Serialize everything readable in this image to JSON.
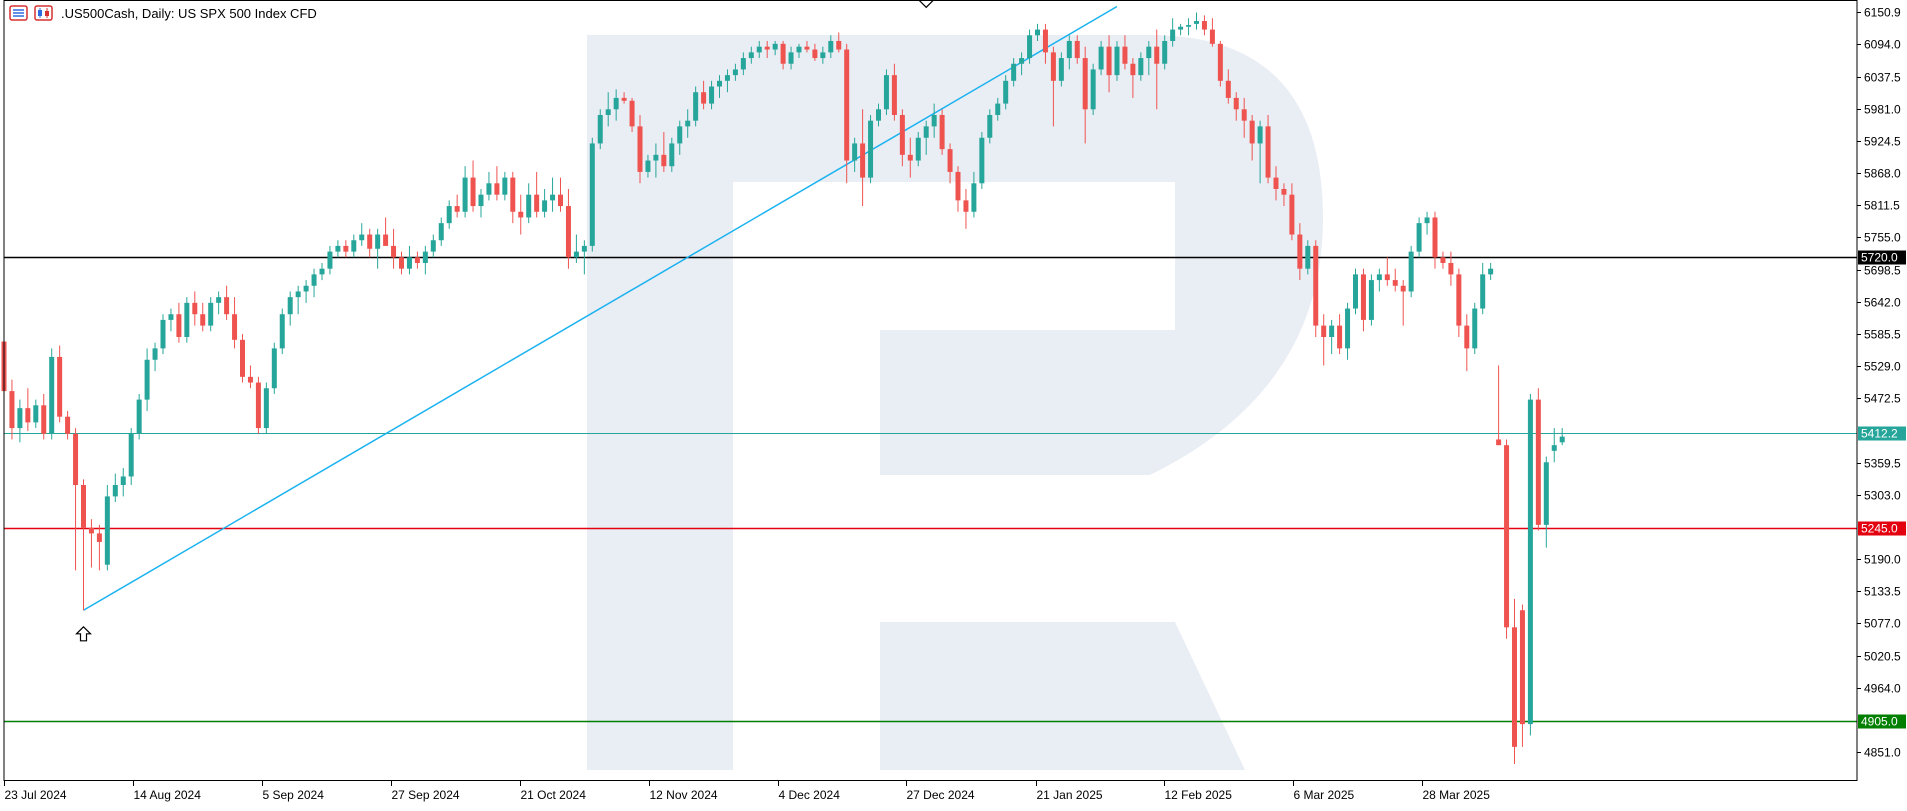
{
  "header": {
    "symbol": ".US500Cash",
    "timeframe": "Daily",
    "description": "US SPX 500 Index CFD",
    "text": ".US500Cash, Daily:  US SPX 500 Index CFD",
    "icons": [
      "list-icon",
      "candles-icon"
    ]
  },
  "chart_data": {
    "type": "candlestick",
    "title": ".US500Cash, Daily:  US SPX 500 Index CFD",
    "xlabel": "",
    "ylabel": "",
    "ylim": [
      4810,
      6160
    ],
    "grid": false,
    "legend": "none",
    "x_axis": {
      "ticks": [
        "23 Jul 2024",
        "14 Aug 2024",
        "5 Sep 2024",
        "27 Sep 2024",
        "21 Oct 2024",
        "12 Nov 2024",
        "4 Dec 2024",
        "27 Dec 2024",
        "21 Jan 2025",
        "12 Feb 2025",
        "6 Mar 2025",
        "28 Mar 2025"
      ]
    },
    "y_axis": {
      "ticks": [
        6150.9,
        6094.0,
        6037.5,
        5981.0,
        5924.5,
        5868.0,
        5811.5,
        5755.0,
        5698.5,
        5642.0,
        5585.5,
        5529.0,
        5472.5,
        5359.5,
        5303.0,
        5190.0,
        5133.5,
        5077.0,
        5020.5,
        4964.0,
        4851.0
      ]
    },
    "levels": [
      {
        "label": "5720.0",
        "value": 5720.0,
        "color": "#000000",
        "tag_bg": "#000000"
      },
      {
        "label": "5412.2",
        "value": 5412.2,
        "color": "#26a69a",
        "tag_bg": "#26a69a"
      },
      {
        "label": "5245.0",
        "value": 5245.0,
        "color": "#e3000f",
        "tag_bg": "#e3000f"
      },
      {
        "label": "4905.0",
        "value": 4905.0,
        "color": "#007f00",
        "tag_bg": "#007f00"
      }
    ],
    "trendline": {
      "start": {
        "i": 10,
        "price": 5100
      },
      "through": {
        "i": 86,
        "price": 5720
      },
      "extend_to_i": 140,
      "color": "#1ab2f0"
    },
    "arrows": [
      {
        "i": 10,
        "direction": "up",
        "price": 5085
      },
      {
        "i": 116,
        "direction": "down",
        "price": 6145
      }
    ],
    "colors": {
      "up": "#26a69a",
      "down": "#ef5350",
      "watermark": "#e9edf4"
    },
    "ohlc": [
      [
        5572,
        5575,
        5470,
        5485
      ],
      [
        5485,
        5505,
        5400,
        5420
      ],
      [
        5420,
        5470,
        5395,
        5455
      ],
      [
        5455,
        5490,
        5415,
        5430
      ],
      [
        5430,
        5470,
        5420,
        5460
      ],
      [
        5460,
        5480,
        5400,
        5410
      ],
      [
        5410,
        5560,
        5400,
        5545
      ],
      [
        5545,
        5565,
        5430,
        5440
      ],
      [
        5440,
        5450,
        5400,
        5410
      ],
      [
        5410,
        5420,
        5170,
        5320
      ],
      [
        5320,
        5330,
        5100,
        5245
      ],
      [
        5245,
        5260,
        5175,
        5235
      ],
      [
        5235,
        5250,
        5170,
        5220
      ],
      [
        5180,
        5320,
        5170,
        5300
      ],
      [
        5300,
        5340,
        5290,
        5320
      ],
      [
        5320,
        5350,
        5300,
        5335
      ],
      [
        5335,
        5420,
        5320,
        5410
      ],
      [
        5410,
        5480,
        5400,
        5470
      ],
      [
        5470,
        5560,
        5450,
        5540
      ],
      [
        5540,
        5570,
        5520,
        5560
      ],
      [
        5560,
        5620,
        5550,
        5610
      ],
      [
        5610,
        5630,
        5590,
        5620
      ],
      [
        5620,
        5640,
        5570,
        5580
      ],
      [
        5580,
        5650,
        5570,
        5640
      ],
      [
        5640,
        5660,
        5600,
        5620
      ],
      [
        5620,
        5640,
        5590,
        5600
      ],
      [
        5600,
        5650,
        5590,
        5640
      ],
      [
        5640,
        5660,
        5620,
        5650
      ],
      [
        5650,
        5670,
        5610,
        5620
      ],
      [
        5620,
        5650,
        5560,
        5575
      ],
      [
        5575,
        5585,
        5500,
        5510
      ],
      [
        5510,
        5530,
        5490,
        5500
      ],
      [
        5500,
        5510,
        5410,
        5420
      ],
      [
        5420,
        5500,
        5410,
        5490
      ],
      [
        5490,
        5570,
        5480,
        5560
      ],
      [
        5560,
        5630,
        5550,
        5620
      ],
      [
        5620,
        5660,
        5600,
        5650
      ],
      [
        5650,
        5670,
        5620,
        5660
      ],
      [
        5660,
        5680,
        5640,
        5670
      ],
      [
        5670,
        5700,
        5650,
        5690
      ],
      [
        5690,
        5710,
        5680,
        5700
      ],
      [
        5700,
        5740,
        5690,
        5730
      ],
      [
        5730,
        5750,
        5720,
        5740
      ],
      [
        5740,
        5750,
        5720,
        5730
      ],
      [
        5730,
        5760,
        5720,
        5750
      ],
      [
        5750,
        5780,
        5740,
        5760
      ],
      [
        5760,
        5770,
        5720,
        5735
      ],
      [
        5735,
        5770,
        5700,
        5760
      ],
      [
        5760,
        5790,
        5740,
        5740
      ],
      [
        5740,
        5770,
        5700,
        5720
      ],
      [
        5720,
        5730,
        5690,
        5700
      ],
      [
        5700,
        5740,
        5690,
        5720
      ],
      [
        5720,
        5730,
        5700,
        5710
      ],
      [
        5710,
        5740,
        5690,
        5730
      ],
      [
        5730,
        5760,
        5720,
        5750
      ],
      [
        5750,
        5790,
        5740,
        5780
      ],
      [
        5780,
        5820,
        5770,
        5810
      ],
      [
        5810,
        5830,
        5790,
        5800
      ],
      [
        5800,
        5880,
        5790,
        5860
      ],
      [
        5860,
        5890,
        5800,
        5810
      ],
      [
        5810,
        5840,
        5790,
        5830
      ],
      [
        5830,
        5870,
        5820,
        5850
      ],
      [
        5850,
        5880,
        5820,
        5830
      ],
      [
        5830,
        5870,
        5820,
        5860
      ],
      [
        5860,
        5870,
        5780,
        5800
      ],
      [
        5800,
        5830,
        5760,
        5790
      ],
      [
        5790,
        5850,
        5780,
        5830
      ],
      [
        5830,
        5870,
        5790,
        5800
      ],
      [
        5800,
        5840,
        5790,
        5820
      ],
      [
        5820,
        5860,
        5800,
        5830
      ],
      [
        5830,
        5860,
        5800,
        5810
      ],
      [
        5810,
        5840,
        5700,
        5720
      ],
      [
        5720,
        5760,
        5710,
        5730
      ],
      [
        5730,
        5750,
        5690,
        5740
      ],
      [
        5740,
        5930,
        5730,
        5920
      ],
      [
        5920,
        5980,
        5910,
        5970
      ],
      [
        5970,
        6010,
        5950,
        5980
      ],
      [
        5980,
        6015,
        5960,
        6000
      ],
      [
        6000,
        6010,
        5990,
        5995
      ],
      [
        5995,
        6000,
        5940,
        5950
      ],
      [
        5950,
        5970,
        5850,
        5870
      ],
      [
        5870,
        5900,
        5860,
        5890
      ],
      [
        5890,
        5920,
        5860,
        5900
      ],
      [
        5900,
        5940,
        5870,
        5880
      ],
      [
        5880,
        5930,
        5870,
        5920
      ],
      [
        5920,
        5960,
        5900,
        5950
      ],
      [
        5950,
        5980,
        5930,
        5960
      ],
      [
        5960,
        6020,
        5950,
        6010
      ],
      [
        6010,
        6030,
        5980,
        5990
      ],
      [
        5990,
        6030,
        5980,
        6020
      ],
      [
        6020,
        6040,
        6000,
        6030
      ],
      [
        6030,
        6050,
        6010,
        6040
      ],
      [
        6040,
        6060,
        6030,
        6050
      ],
      [
        6050,
        6080,
        6040,
        6070
      ],
      [
        6070,
        6090,
        6060,
        6080
      ],
      [
        6080,
        6100,
        6070,
        6090
      ],
      [
        6090,
        6100,
        6070,
        6085
      ],
      [
        6085,
        6100,
        6075,
        6095
      ],
      [
        6095,
        6100,
        6050,
        6060
      ],
      [
        6060,
        6090,
        6050,
        6080
      ],
      [
        6080,
        6095,
        6070,
        6090
      ],
      [
        6090,
        6100,
        6080,
        6085
      ],
      [
        6085,
        6095,
        6065,
        6070
      ],
      [
        6070,
        6090,
        6060,
        6080
      ],
      [
        6080,
        6110,
        6070,
        6100
      ],
      [
        6100,
        6115,
        6080,
        6085
      ],
      [
        6085,
        6095,
        5850,
        5890
      ],
      [
        5890,
        5930,
        5870,
        5920
      ],
      [
        5920,
        5980,
        5810,
        5860
      ],
      [
        5860,
        5970,
        5850,
        5960
      ],
      [
        5960,
        5990,
        5950,
        5980
      ],
      [
        5980,
        6050,
        5970,
        6040
      ],
      [
        6040,
        6060,
        5960,
        5970
      ],
      [
        5970,
        5980,
        5880,
        5900
      ],
      [
        5900,
        5930,
        5860,
        5890
      ],
      [
        5890,
        5940,
        5880,
        5930
      ],
      [
        5930,
        5960,
        5900,
        5950
      ],
      [
        5950,
        5990,
        5930,
        5970
      ],
      [
        5970,
        5980,
        5900,
        5910
      ],
      [
        5910,
        5920,
        5850,
        5870
      ],
      [
        5870,
        5880,
        5800,
        5820
      ],
      [
        5820,
        5840,
        5770,
        5800
      ],
      [
        5800,
        5870,
        5790,
        5850
      ],
      [
        5850,
        5940,
        5840,
        5930
      ],
      [
        5930,
        5980,
        5920,
        5970
      ],
      [
        5970,
        6000,
        5960,
        5990
      ],
      [
        5990,
        6040,
        5980,
        6030
      ],
      [
        6030,
        6070,
        6020,
        6060
      ],
      [
        6060,
        6080,
        6040,
        6070
      ],
      [
        6070,
        6120,
        6060,
        6110
      ],
      [
        6110,
        6130,
        6100,
        6120
      ],
      [
        6120,
        6130,
        6060,
        6080
      ],
      [
        6080,
        6090,
        5950,
        6030
      ],
      [
        6030,
        6080,
        6020,
        6070
      ],
      [
        6070,
        6110,
        6050,
        6100
      ],
      [
        6100,
        6110,
        6060,
        6070
      ],
      [
        6070,
        6090,
        5920,
        5980
      ],
      [
        5980,
        6060,
        5970,
        6050
      ],
      [
        6050,
        6100,
        6040,
        6090
      ],
      [
        6090,
        6110,
        6010,
        6040
      ],
      [
        6040,
        6100,
        6030,
        6090
      ],
      [
        6090,
        6110,
        6050,
        6060
      ],
      [
        6060,
        6070,
        6000,
        6040
      ],
      [
        6040,
        6080,
        6030,
        6070
      ],
      [
        6070,
        6100,
        6040,
        6090
      ],
      [
        6090,
        6120,
        5980,
        6060
      ],
      [
        6060,
        6110,
        6050,
        6100
      ],
      [
        6100,
        6140,
        6090,
        6120
      ],
      [
        6120,
        6130,
        6110,
        6125
      ],
      [
        6125,
        6140,
        6110,
        6128
      ],
      [
        6130,
        6150,
        6120,
        6135
      ],
      [
        6135,
        6145,
        6110,
        6120
      ],
      [
        6120,
        6140,
        6090,
        6095
      ],
      [
        6095,
        6100,
        6020,
        6030
      ],
      [
        6030,
        6050,
        5990,
        6000
      ],
      [
        6000,
        6010,
        5960,
        5980
      ],
      [
        5980,
        6000,
        5930,
        5960
      ],
      [
        5960,
        5970,
        5890,
        5920
      ],
      [
        5920,
        5960,
        5850,
        5950
      ],
      [
        5950,
        5970,
        5850,
        5860
      ],
      [
        5860,
        5880,
        5820,
        5840
      ],
      [
        5840,
        5850,
        5810,
        5830
      ],
      [
        5830,
        5850,
        5750,
        5760
      ],
      [
        5760,
        5780,
        5680,
        5700
      ],
      [
        5700,
        5750,
        5690,
        5740
      ],
      [
        5740,
        5750,
        5580,
        5600
      ],
      [
        5600,
        5620,
        5530,
        5580
      ],
      [
        5580,
        5610,
        5550,
        5600
      ],
      [
        5600,
        5620,
        5550,
        5560
      ],
      [
        5560,
        5640,
        5540,
        5630
      ],
      [
        5630,
        5700,
        5620,
        5690
      ],
      [
        5690,
        5700,
        5590,
        5610
      ],
      [
        5610,
        5690,
        5600,
        5680
      ],
      [
        5680,
        5700,
        5660,
        5690
      ],
      [
        5690,
        5720,
        5670,
        5680
      ],
      [
        5680,
        5700,
        5660,
        5670
      ],
      [
        5670,
        5680,
        5600,
        5660
      ],
      [
        5660,
        5740,
        5650,
        5730
      ],
      [
        5730,
        5790,
        5720,
        5780
      ],
      [
        5780,
        5800,
        5760,
        5790
      ],
      [
        5790,
        5800,
        5700,
        5720
      ],
      [
        5720,
        5730,
        5700,
        5710
      ],
      [
        5710,
        5730,
        5670,
        5690
      ],
      [
        5690,
        5700,
        5580,
        5600
      ],
      [
        5600,
        5620,
        5520,
        5560
      ],
      [
        5560,
        5640,
        5550,
        5630
      ],
      [
        5630,
        5710,
        5620,
        5690
      ],
      [
        5690,
        5710,
        5680,
        5700
      ],
      [
        5400,
        5530,
        5390,
        5390
      ],
      [
        5390,
        5400,
        5050,
        5070
      ],
      [
        5070,
        5120,
        4830,
        4860
      ],
      [
        5100,
        5110,
        4860,
        4900
      ],
      [
        4900,
        5480,
        4880,
        5470
      ],
      [
        5470,
        5490,
        5240,
        5250
      ],
      [
        5250,
        5370,
        5210,
        5360
      ],
      [
        5380,
        5420,
        5360,
        5390
      ],
      [
        5395,
        5420,
        5390,
        5405
      ]
    ]
  }
}
